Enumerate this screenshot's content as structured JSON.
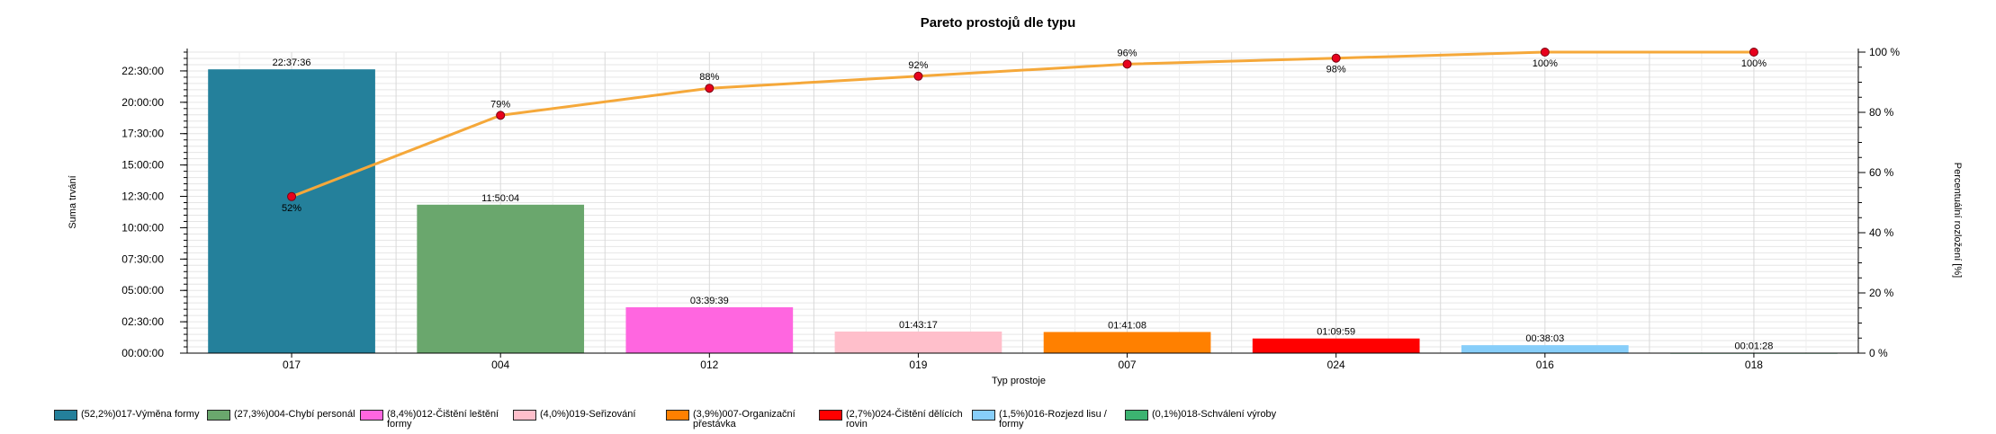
{
  "chart_data": {
    "type": "bar",
    "title": "Pareto prostojů dle typu",
    "xlabel": "Typ prostoje",
    "ylabel": "Suma trvání",
    "y2label": "Percentuální rozložení [%]",
    "categories": [
      "017",
      "004",
      "012",
      "019",
      "007",
      "024",
      "016",
      "018"
    ],
    "values_seconds": [
      81456,
      42604,
      13179,
      6197,
      6068,
      4199,
      2283,
      88
    ],
    "value_labels": [
      "22:37:36",
      "11:50:04",
      "03:39:39",
      "01:43:17",
      "01:41:08",
      "01:09:59",
      "00:38:03",
      "00:01:28"
    ],
    "colors": [
      "#24809b",
      "#6aa76d",
      "#ff66e0",
      "#ffbfcb",
      "#ff8000",
      "#ff0000",
      "#87cefa",
      "#3cb371"
    ],
    "ylim_seconds": [
      0,
      86400
    ],
    "yticks": [
      "00:00:00",
      "02:30:00",
      "05:00:00",
      "07:30:00",
      "10:00:00",
      "12:30:00",
      "15:00:00",
      "17:30:00",
      "20:00:00",
      "22:30:00"
    ],
    "cumulative_percent": [
      52,
      79,
      88,
      92,
      96,
      98,
      100,
      100
    ],
    "cumulative_labels": [
      "52%",
      "79%",
      "88%",
      "92%",
      "96%",
      "98%",
      "100%",
      "100%"
    ],
    "y2ticks": [
      "0 %",
      "20 %",
      "40 %",
      "60 %",
      "80 %",
      "100 %"
    ],
    "y2lim": [
      0,
      100
    ],
    "line_color": "#f5a83a",
    "point_color": "#e8001c",
    "grid": true,
    "legend_position": "bottom-left"
  },
  "legend": [
    {
      "label": "(52,2%)017-Výměna formy",
      "color": "#24809b"
    },
    {
      "label": "(27,3%)004-Chybí personál",
      "color": "#6aa76d"
    },
    {
      "label": "(8,4%)012-Čištění leštění formy",
      "color": "#ff66e0"
    },
    {
      "label": "(4,0%)019-Seřizování",
      "color": "#ffbfcb"
    },
    {
      "label": "(3,9%)007-Organizační přestávka",
      "color": "#ff8000"
    },
    {
      "label": "(2,7%)024-Čištění dělících rovin",
      "color": "#ff0000"
    },
    {
      "label": "(1,5%)016-Rozjezd lisu / formy",
      "color": "#87cefa"
    },
    {
      "label": "(0,1%)018-Schválení výroby",
      "color": "#3cb371"
    }
  ]
}
